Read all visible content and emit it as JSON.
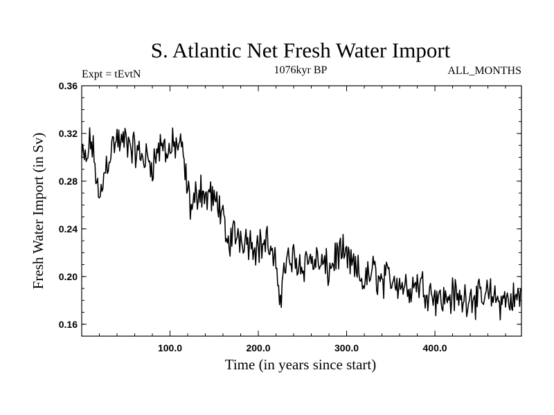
{
  "chart_data": {
    "type": "line",
    "title": "S. Atlantic Net Fresh Water Import",
    "subtitle_left": "Expt = tEvtN",
    "subtitle_center": "1076kyr BP",
    "subtitle_right": "ALL_MONTHS",
    "xlabel": "Time (in years since start)",
    "ylabel": "Fresh Water Import (in Sv)",
    "xlim": [
      0,
      498
    ],
    "ylim": [
      0.15,
      0.36
    ],
    "xticks": [
      100,
      200,
      300,
      400
    ],
    "xtick_labels": [
      "100.0",
      "200.0",
      "300.0",
      "400.0"
    ],
    "yticks": [
      0.16,
      0.2,
      0.24,
      0.28,
      0.32,
      0.36
    ],
    "ytick_labels": [
      "0.16",
      "0.20",
      "0.24",
      "0.28",
      "0.32",
      "0.36"
    ],
    "grid": false,
    "series": [
      {
        "name": "Fresh Water Import",
        "anchors": [
          [
            0,
            0.3
          ],
          [
            5,
            0.295
          ],
          [
            10,
            0.315
          ],
          [
            15,
            0.295
          ],
          [
            20,
            0.26
          ],
          [
            25,
            0.285
          ],
          [
            30,
            0.3
          ],
          [
            35,
            0.31
          ],
          [
            40,
            0.315
          ],
          [
            45,
            0.31
          ],
          [
            50,
            0.315
          ],
          [
            60,
            0.305
          ],
          [
            70,
            0.3
          ],
          [
            80,
            0.295
          ],
          [
            90,
            0.31
          ],
          [
            100,
            0.305
          ],
          [
            105,
            0.31
          ],
          [
            110,
            0.31
          ],
          [
            115,
            0.3
          ],
          [
            120,
            0.27
          ],
          [
            125,
            0.255
          ],
          [
            130,
            0.27
          ],
          [
            135,
            0.275
          ],
          [
            140,
            0.265
          ],
          [
            145,
            0.27
          ],
          [
            150,
            0.26
          ],
          [
            155,
            0.265
          ],
          [
            160,
            0.245
          ],
          [
            165,
            0.225
          ],
          [
            170,
            0.235
          ],
          [
            180,
            0.235
          ],
          [
            190,
            0.23
          ],
          [
            200,
            0.225
          ],
          [
            210,
            0.23
          ],
          [
            220,
            0.205
          ],
          [
            225,
            0.185
          ],
          [
            230,
            0.21
          ],
          [
            240,
            0.215
          ],
          [
            250,
            0.21
          ],
          [
            260,
            0.215
          ],
          [
            270,
            0.21
          ],
          [
            280,
            0.205
          ],
          [
            290,
            0.22
          ],
          [
            300,
            0.215
          ],
          [
            310,
            0.205
          ],
          [
            320,
            0.195
          ],
          [
            330,
            0.205
          ],
          [
            340,
            0.195
          ],
          [
            350,
            0.2
          ],
          [
            360,
            0.195
          ],
          [
            370,
            0.19
          ],
          [
            380,
            0.195
          ],
          [
            390,
            0.19
          ],
          [
            400,
            0.185
          ],
          [
            410,
            0.18
          ],
          [
            420,
            0.185
          ],
          [
            430,
            0.18
          ],
          [
            440,
            0.185
          ],
          [
            450,
            0.18
          ],
          [
            460,
            0.185
          ],
          [
            470,
            0.18
          ],
          [
            480,
            0.18
          ],
          [
            490,
            0.18
          ],
          [
            498,
            0.185
          ]
        ],
        "noise_amplitude": 0.012,
        "color": "#000000"
      }
    ]
  }
}
